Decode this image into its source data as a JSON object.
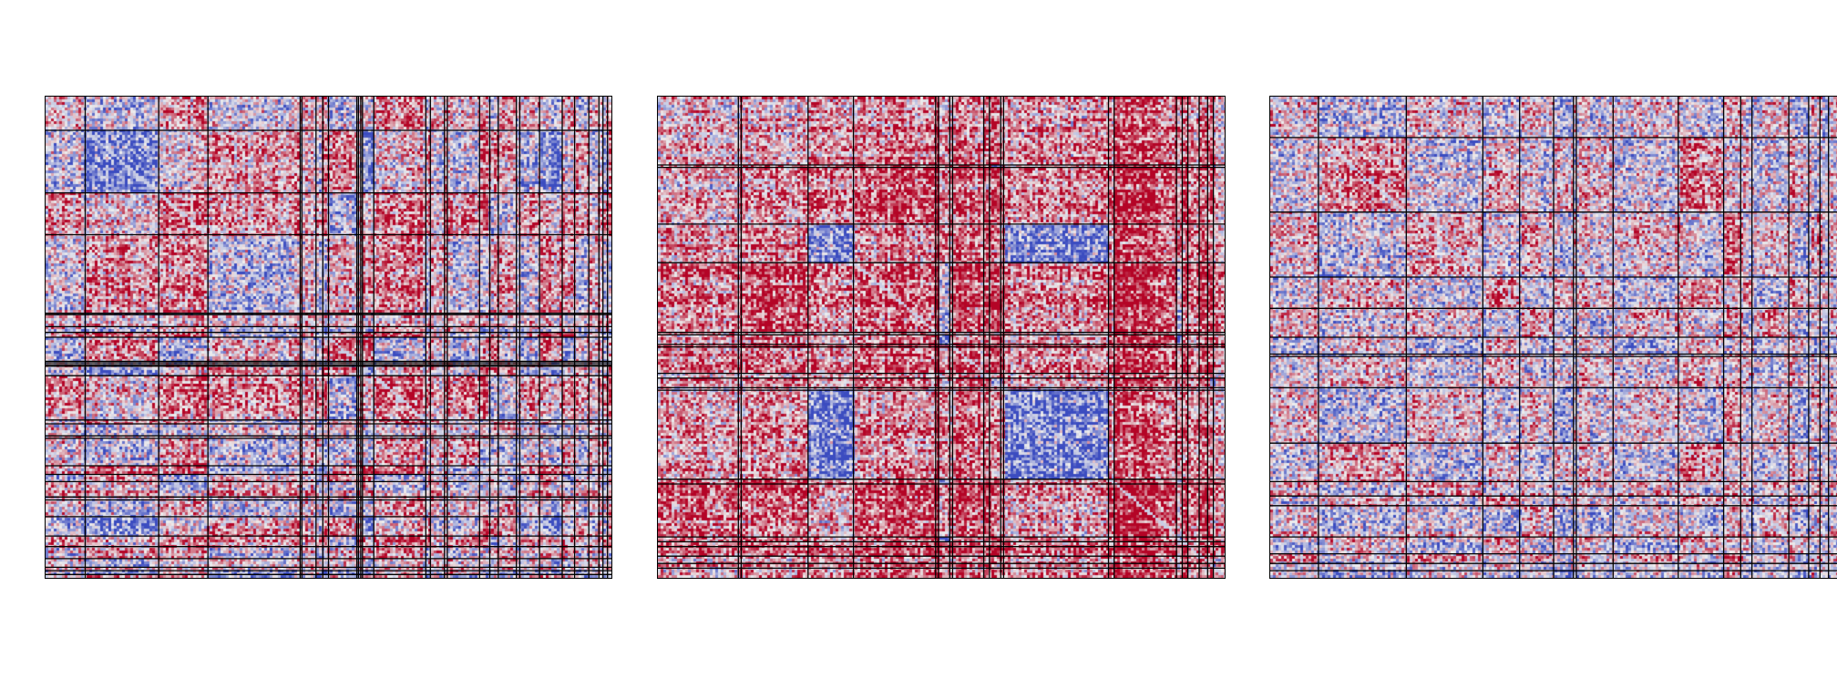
{
  "chart_data": [
    {
      "type": "heatmap",
      "title": "",
      "xlabel": "",
      "ylabel": "",
      "colors": {
        "low": "#3b4cc0",
        "mid": "#eeeeee",
        "high": "#b40426"
      },
      "grid": false,
      "cluster_bounds": [
        0.0,
        0.07,
        0.2,
        0.287,
        0.45,
        0.453,
        0.478,
        0.49,
        0.5,
        0.55,
        0.553,
        0.557,
        0.56,
        0.58,
        0.672,
        0.68,
        0.705,
        0.71,
        0.767,
        0.785,
        0.8,
        0.832,
        0.838,
        0.873,
        0.913,
        0.935,
        0.96,
        0.978,
        0.985,
        0.993,
        1.0
      ],
      "block_tendency": [
        [
          0.3,
          -0.2,
          0.5,
          -0.1,
          0.2,
          0.3,
          0.1,
          0.4,
          -0.3,
          0.4,
          0.1
        ],
        [
          -0.2,
          -0.7,
          0.1,
          0.4,
          -0.2,
          0.2,
          -0.3,
          0.75,
          0.5,
          0.2,
          0.1
        ],
        [
          0.5,
          0.1,
          0.6,
          0.45,
          0.1,
          0.3,
          0.4,
          0.7,
          -0.4,
          -0.3,
          0.2
        ],
        [
          -0.1,
          0.4,
          0.45,
          -0.3,
          0.2,
          0.1,
          -0.3,
          -0.4,
          0.2,
          0.3,
          0.1
        ],
        [
          0.2,
          -0.2,
          0.1,
          0.2,
          0.3,
          0.2,
          0.1,
          0.0,
          0.1,
          0.2,
          0.2
        ],
        [
          0.3,
          0.2,
          0.3,
          0.1,
          0.2,
          0.4,
          0.2,
          0.3,
          0.1,
          0.2,
          0.3
        ],
        [
          0.1,
          -0.3,
          0.4,
          -0.3,
          0.1,
          0.2,
          0.4,
          -0.5,
          -0.3,
          -0.4,
          0.1
        ],
        [
          0.4,
          0.75,
          0.7,
          -0.4,
          0.0,
          0.3,
          -0.5,
          -0.4,
          0.3,
          -0.3,
          0.2
        ],
        [
          -0.3,
          0.5,
          -0.4,
          0.2,
          0.1,
          0.1,
          -0.3,
          0.3,
          0.6,
          -0.2,
          0.3
        ],
        [
          0.4,
          0.2,
          -0.3,
          0.3,
          0.2,
          0.2,
          -0.4,
          -0.3,
          -0.2,
          -0.3,
          0.2
        ],
        [
          0.1,
          0.1,
          0.2,
          0.1,
          0.2,
          0.3,
          0.1,
          0.2,
          0.3,
          0.2,
          0.2
        ]
      ],
      "seed": 17
    },
    {
      "type": "heatmap",
      "title": "",
      "xlabel": "",
      "ylabel": "",
      "colors": {
        "low": "#3b4cc0",
        "mid": "#eeeeee",
        "high": "#b40426"
      },
      "grid": false,
      "cluster_bounds": [
        0.0,
        0.142,
        0.147,
        0.265,
        0.345,
        0.49,
        0.495,
        0.515,
        0.52,
        0.575,
        0.585,
        0.605,
        0.61,
        0.795,
        0.805,
        0.915,
        0.925,
        0.935,
        0.955,
        0.97,
        0.98,
        1.0
      ],
      "block_tendency": [
        [
          0.3,
          0.5,
          0.2,
          0.4,
          0.5,
          0.7,
          0.3,
          0.6,
          0.5
        ],
        [
          0.5,
          -0.6,
          0.6,
          0.3,
          0.65,
          0.9,
          0.2,
          0.75,
          0.6
        ],
        [
          0.2,
          0.6,
          0.35,
          0.4,
          0.7,
          0.8,
          0.3,
          0.75,
          0.5
        ],
        [
          0.4,
          0.3,
          0.4,
          -0.75,
          0.4,
          0.7,
          0.4,
          0.5,
          0.6
        ],
        [
          0.5,
          0.65,
          0.7,
          0.4,
          0.6,
          0.8,
          -0.4,
          0.8,
          0.7
        ],
        [
          0.6,
          0.3,
          0.5,
          0.2,
          0.7,
          0.9,
          0.1,
          0.7,
          0.6
        ],
        [
          0.45,
          0.7,
          0.6,
          0.35,
          0.6,
          0.85,
          -0.85,
          0.8,
          0.5
        ],
        [
          0.7,
          0.8,
          0.8,
          0.6,
          0.7,
          0.9,
          0.7,
          0.95,
          0.8
        ],
        [
          0.5,
          0.6,
          0.5,
          0.4,
          0.7,
          0.85,
          0.4,
          0.8,
          0.6
        ]
      ],
      "seed": 43
    },
    {
      "type": "heatmap",
      "title": "",
      "xlabel": "",
      "ylabel": "",
      "colors": {
        "low": "#3b4cc0",
        "mid": "#eeeeee",
        "high": "#b40426"
      },
      "grid": false,
      "cluster_bounds": [
        0.0,
        0.085,
        0.24,
        0.375,
        0.44,
        0.5,
        0.535,
        0.54,
        0.605,
        0.72,
        0.8,
        0.83,
        0.85,
        0.915,
        0.95,
        0.97,
        0.985,
        1.0
      ],
      "block_tendency": [
        [
          0.1,
          -0.3,
          0.2,
          -0.2,
          0.1,
          -0.3,
          0.2,
          -0.1
        ],
        [
          -0.2,
          0.4,
          -0.2,
          0.1,
          -0.2,
          0.2,
          -0.3,
          0.1
        ],
        [
          0.1,
          -0.3,
          0.3,
          -0.2,
          0.1,
          -0.2,
          0.3,
          -0.1
        ],
        [
          -0.2,
          0.2,
          -0.2,
          0.4,
          -0.3,
          0.3,
          -0.2,
          0.1
        ],
        [
          0.1,
          -0.2,
          0.1,
          -0.3,
          0.3,
          -0.2,
          0.1,
          -0.2
        ],
        [
          -0.3,
          0.2,
          -0.2,
          0.3,
          -0.2,
          0.35,
          -0.3,
          0.1
        ],
        [
          0.2,
          -0.3,
          0.3,
          -0.2,
          0.1,
          -0.3,
          0.3,
          -0.1
        ],
        [
          -0.1,
          0.1,
          -0.1,
          0.1,
          -0.2,
          0.1,
          -0.1,
          0.2
        ]
      ],
      "seed": 91
    }
  ]
}
